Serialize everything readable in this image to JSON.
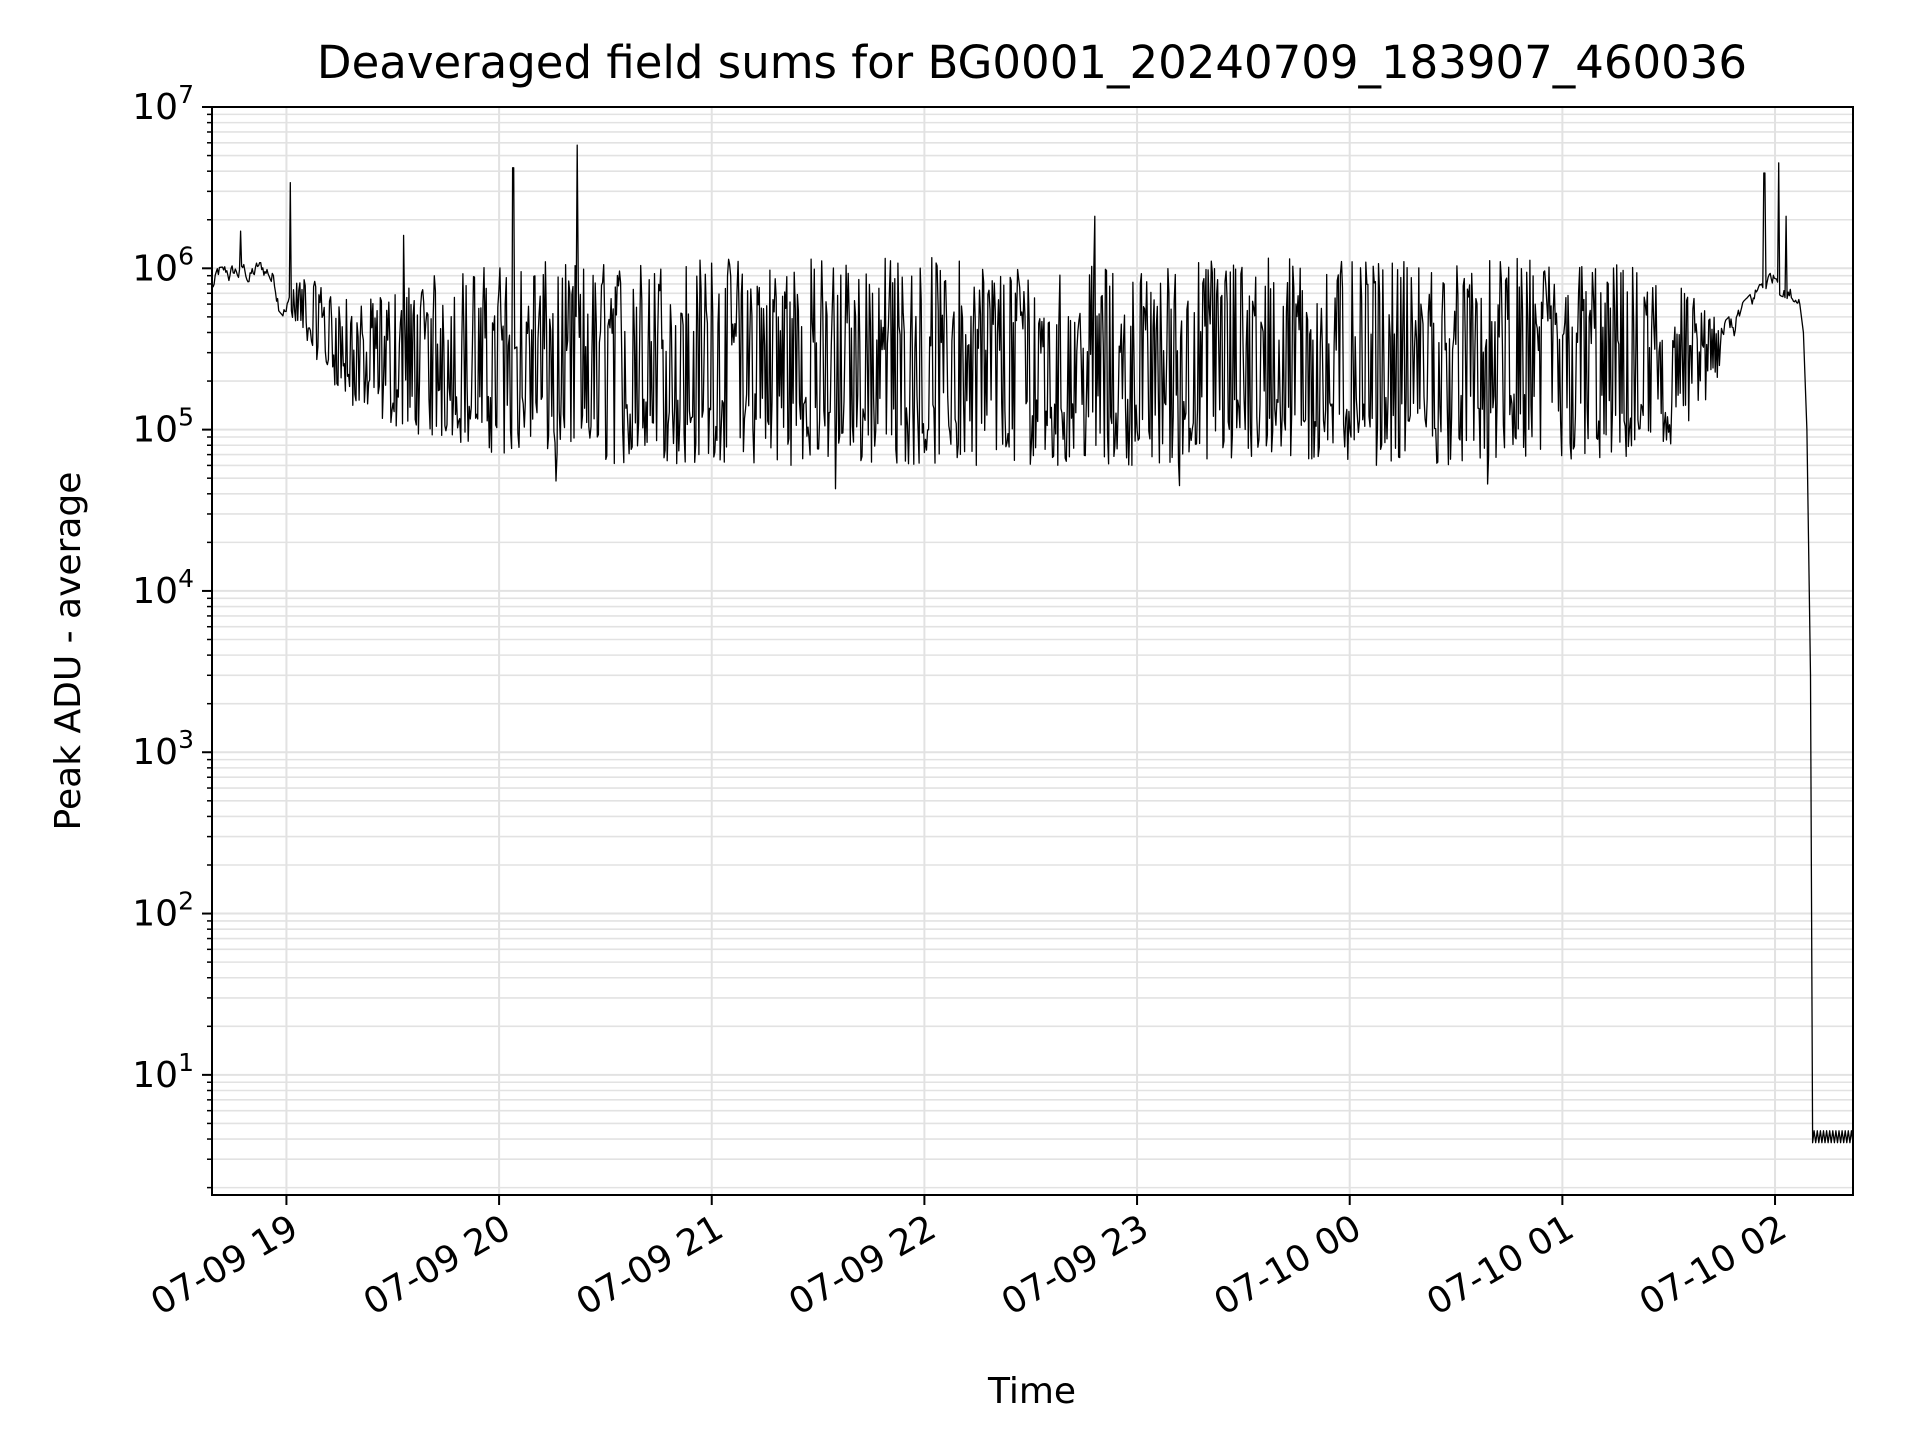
{
  "chart_data": {
    "type": "line",
    "title": "Deaveraged field sums for BG0001_20240709_183907_460036",
    "xlabel": "Time",
    "ylabel": "Peak ADU - average",
    "x_scale": "time",
    "y_scale": "log",
    "xlim": [
      "2024-07-09T18:39",
      "2024-07-10T02:22"
    ],
    "ylim": [
      1.8,
      10000000
    ],
    "grid": true,
    "legend": "none",
    "x_ticks": [
      {
        "t": "2024-07-09T19:00",
        "label": "07-09 19"
      },
      {
        "t": "2024-07-09T20:00",
        "label": "07-09 20"
      },
      {
        "t": "2024-07-09T21:00",
        "label": "07-09 21"
      },
      {
        "t": "2024-07-09T22:00",
        "label": "07-09 22"
      },
      {
        "t": "2024-07-09T23:00",
        "label": "07-09 23"
      },
      {
        "t": "2024-07-10T00:00",
        "label": "07-10 00"
      },
      {
        "t": "2024-07-10T01:00",
        "label": "07-10 01"
      },
      {
        "t": "2024-07-10T02:00",
        "label": "07-10 02"
      }
    ],
    "y_ticks": [
      {
        "value": 10,
        "base": "10",
        "exp": "1"
      },
      {
        "value": 100,
        "base": "10",
        "exp": "2"
      },
      {
        "value": 1000,
        "base": "10",
        "exp": "3"
      },
      {
        "value": 10000,
        "base": "10",
        "exp": "4"
      },
      {
        "value": 100000,
        "base": "10",
        "exp": "5"
      },
      {
        "value": 1000000,
        "base": "10",
        "exp": "6"
      },
      {
        "value": 10000000,
        "base": "10",
        "exp": "7"
      }
    ],
    "series": [
      {
        "color": "#000000",
        "envelope": [
          {
            "t": "2024-07-09T18:39",
            "low": 600000,
            "high": 1000000
          },
          {
            "t": "2024-07-09T18:55",
            "low": 650000,
            "high": 1100000
          },
          {
            "t": "2024-07-09T19:05",
            "low": 350000,
            "high": 900000
          },
          {
            "t": "2024-07-09T19:20",
            "low": 120000,
            "high": 600000
          },
          {
            "t": "2024-07-09T19:40",
            "low": 90000,
            "high": 900000
          },
          {
            "t": "2024-07-09T20:00",
            "low": 70000,
            "high": 1100000
          },
          {
            "t": "2024-07-09T20:30",
            "low": 60000,
            "high": 1100000
          },
          {
            "t": "2024-07-09T21:00",
            "low": 60000,
            "high": 1200000
          },
          {
            "t": "2024-07-09T21:30",
            "low": 60000,
            "high": 1200000
          },
          {
            "t": "2024-07-09T22:00",
            "low": 60000,
            "high": 1200000
          },
          {
            "t": "2024-07-09T22:30",
            "low": 60000,
            "high": 1100000
          },
          {
            "t": "2024-07-09T23:00",
            "low": 60000,
            "high": 1000000
          },
          {
            "t": "2024-07-09T23:30",
            "low": 60000,
            "high": 1300000
          },
          {
            "t": "2024-07-10T00:00",
            "low": 60000,
            "high": 1100000
          },
          {
            "t": "2024-07-10T00:30",
            "low": 60000,
            "high": 1100000
          },
          {
            "t": "2024-07-10T01:00",
            "low": 60000,
            "high": 1200000
          },
          {
            "t": "2024-07-10T01:30",
            "low": 60000,
            "high": 1000000
          },
          {
            "t": "2024-07-10T01:45",
            "low": 200000,
            "high": 450000
          },
          {
            "t": "2024-07-10T02:00",
            "low": 700000,
            "high": 1000000
          },
          {
            "t": "2024-07-10T02:07",
            "low": 600000,
            "high": 1000000
          }
        ],
        "spikes": [
          {
            "t": "2024-07-09T18:47",
            "value": 1700000
          },
          {
            "t": "2024-07-09T19:01",
            "value": 3400000
          },
          {
            "t": "2024-07-09T19:33",
            "value": 1600000
          },
          {
            "t": "2024-07-09T20:04",
            "value": 4200000
          },
          {
            "t": "2024-07-09T20:22",
            "value": 5800000
          },
          {
            "t": "2024-07-09T22:48",
            "value": 2100000
          },
          {
            "t": "2024-07-10T01:57",
            "value": 3900000
          },
          {
            "t": "2024-07-10T02:01",
            "value": 4500000
          },
          {
            "t": "2024-07-10T02:03",
            "value": 2100000
          }
        ],
        "dips": [
          {
            "t": "2024-07-09T21:35",
            "value": 43000
          },
          {
            "t": "2024-07-09T20:16",
            "value": 48000
          },
          {
            "t": "2024-07-09T23:12",
            "value": 45000
          },
          {
            "t": "2024-07-10T00:39",
            "value": 46000
          }
        ],
        "drop": [
          {
            "t": "2024-07-10T02:07",
            "value": 600000
          },
          {
            "t": "2024-07-10T02:08",
            "value": 400000
          },
          {
            "t": "2024-07-10T02:09",
            "value": 100000
          },
          {
            "t": "2024-07-10T02:10",
            "value": 3000
          },
          {
            "t": "2024-07-10T02:10.6",
            "value": 4
          }
        ],
        "floor": {
          "t_start": "2024-07-10T02:10.6",
          "t_end": "2024-07-10T02:22",
          "low": 3.8,
          "high": 4.5
        }
      }
    ]
  }
}
